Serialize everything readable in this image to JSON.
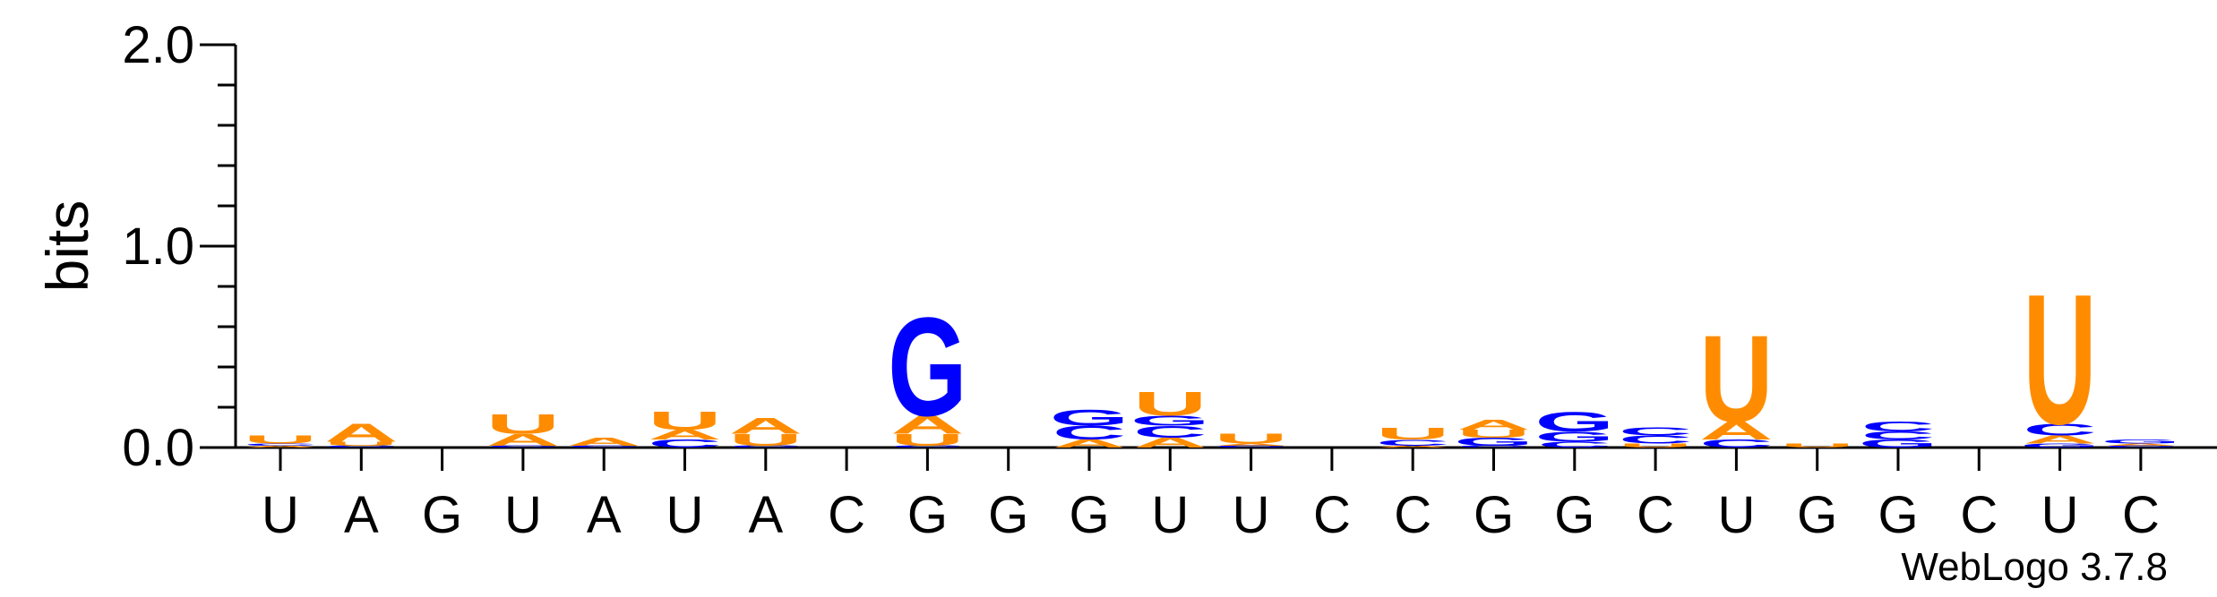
{
  "chart_data": {
    "type": "sequence-logo",
    "ylabel": "bits",
    "ylim": [
      0,
      2.0
    ],
    "yticks": [
      "0.0",
      "1.0",
      "2.0"
    ],
    "credit": "WebLogo 3.7.8",
    "colors": {
      "A": "#ff8c00",
      "U": "#ff8c00",
      "G": "#0000ff",
      "C": "#0000ff"
    },
    "positions": [
      {
        "label": "U",
        "stack": [
          [
            "A",
            0.01
          ],
          [
            "C",
            0.01
          ],
          [
            "U",
            0.04
          ]
        ]
      },
      {
        "label": "A",
        "stack": [
          [
            "C",
            0.01
          ],
          [
            "U",
            0.02
          ],
          [
            "A",
            0.09
          ]
        ]
      },
      {
        "label": "G",
        "stack": []
      },
      {
        "label": "U",
        "stack": [
          [
            "C",
            0.01
          ],
          [
            "A",
            0.06
          ],
          [
            "U",
            0.1
          ]
        ]
      },
      {
        "label": "A",
        "stack": [
          [
            "C",
            0.01
          ],
          [
            "A",
            0.04
          ]
        ]
      },
      {
        "label": "U",
        "stack": [
          [
            "C",
            0.04
          ],
          [
            "A",
            0.05
          ],
          [
            "U",
            0.09
          ]
        ]
      },
      {
        "label": "A",
        "stack": [
          [
            "C",
            0.01
          ],
          [
            "U",
            0.06
          ],
          [
            "A",
            0.08
          ]
        ]
      },
      {
        "label": "C",
        "stack": []
      },
      {
        "label": "G",
        "stack": [
          [
            "C",
            0.01
          ],
          [
            "U",
            0.06
          ],
          [
            "A",
            0.09
          ],
          [
            "G",
            0.5
          ]
        ]
      },
      {
        "label": "G",
        "stack": []
      },
      {
        "label": "G",
        "stack": [
          [
            "A",
            0.04
          ],
          [
            "C",
            0.07
          ],
          [
            "G",
            0.08
          ]
        ]
      },
      {
        "label": "U",
        "stack": [
          [
            "A",
            0.05
          ],
          [
            "C",
            0.06
          ],
          [
            "G",
            0.05
          ],
          [
            "U",
            0.12
          ]
        ]
      },
      {
        "label": "U",
        "stack": [
          [
            "C",
            0.01
          ],
          [
            "A",
            0.01
          ],
          [
            "U",
            0.05
          ]
        ]
      },
      {
        "label": "C",
        "stack": []
      },
      {
        "label": "C",
        "stack": [
          [
            "A",
            0.01
          ],
          [
            "C",
            0.03
          ],
          [
            "U",
            0.06
          ]
        ]
      },
      {
        "label": "G",
        "stack": [
          [
            "C",
            0.01
          ],
          [
            "G",
            0.04
          ],
          [
            "U",
            0.04
          ],
          [
            "A",
            0.05
          ]
        ]
      },
      {
        "label": "G",
        "stack": [
          [
            "C",
            0.03
          ],
          [
            "G",
            0.05
          ],
          [
            "G",
            0.1
          ]
        ]
      },
      {
        "label": "C",
        "stack": [
          [
            "U",
            0.02
          ],
          [
            "C",
            0.04
          ],
          [
            "C",
            0.04
          ]
        ]
      },
      {
        "label": "U",
        "stack": [
          [
            "C",
            0.04
          ],
          [
            "A",
            0.09
          ],
          [
            "U",
            0.44
          ]
        ]
      },
      {
        "label": "G",
        "stack": [
          [
            "U",
            0.02
          ]
        ]
      },
      {
        "label": "G",
        "stack": [
          [
            "G",
            0.04
          ],
          [
            "C",
            0.04
          ],
          [
            "C",
            0.05
          ]
        ]
      },
      {
        "label": "C",
        "stack": []
      },
      {
        "label": "U",
        "stack": [
          [
            "G",
            0.02
          ],
          [
            "A",
            0.04
          ],
          [
            "C",
            0.06
          ],
          [
            "U",
            0.66
          ]
        ]
      },
      {
        "label": "C",
        "stack": [
          [
            "C",
            0.01
          ],
          [
            "A",
            0.01
          ],
          [
            "G",
            0.02
          ]
        ]
      }
    ]
  }
}
